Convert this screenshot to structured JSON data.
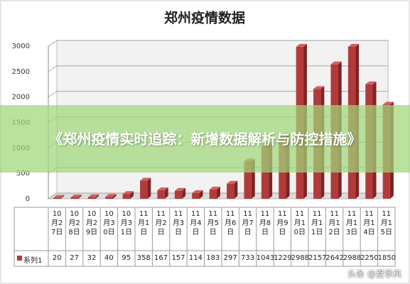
{
  "title": "《郑州疫情实时追踪：新增数据解析与防控措施》",
  "watermark": "头条 @夏季风",
  "chart_data": {
    "type": "bar",
    "title": "郑州疫情数据",
    "categories": [
      "10月27日",
      "10月28日",
      "10月29日",
      "10月30日",
      "10月31日",
      "11月1日",
      "11月2日",
      "11月3日",
      "11月4日",
      "11月5日",
      "11月6日",
      "11月7日",
      "11月8日",
      "11月9日",
      "11月10日",
      "11月11日",
      "11月12日",
      "11月13日",
      "11月14日",
      "11月15日"
    ],
    "series": [
      {
        "name": "系列1",
        "color": "#b33a3a",
        "values": [
          20,
          27,
          32,
          40,
          95,
          358,
          167,
          157,
          114,
          183,
          297,
          733,
          1043,
          1229,
          2988,
          2157,
          2642,
          2988,
          2250,
          1850
        ]
      }
    ],
    "ylim": [
      0,
      3000
    ],
    "yticks": [
      0,
      500,
      1000,
      1500,
      2000,
      2500,
      3000
    ],
    "grid": true
  }
}
